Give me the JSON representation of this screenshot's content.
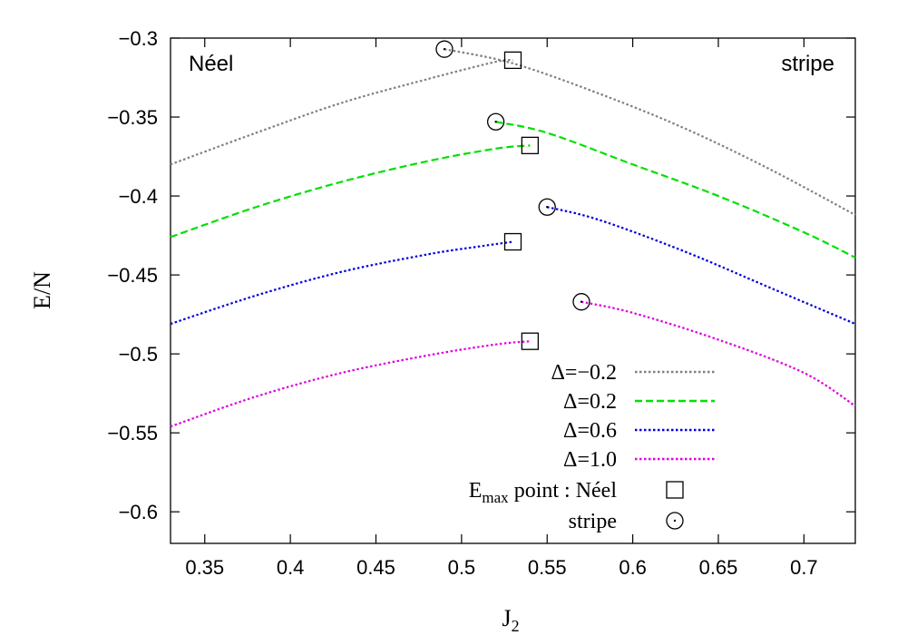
{
  "chart_data": {
    "type": "line",
    "title": "",
    "xlabel": "J",
    "xlabel_sub": "2",
    "ylabel": "E/N",
    "xlim": [
      0.33,
      0.73
    ],
    "ylim": [
      -0.62,
      -0.3
    ],
    "x_ticks": [
      0.35,
      0.4,
      0.45,
      0.5,
      0.55,
      0.6,
      0.65,
      0.7
    ],
    "x_tick_labels": [
      "0.35",
      "0.4",
      "0.45",
      "0.5",
      "0.55",
      "0.6",
      "0.65",
      "0.7"
    ],
    "y_ticks": [
      -0.3,
      -0.35,
      -0.4,
      -0.45,
      -0.5,
      -0.55,
      -0.6
    ],
    "y_tick_labels": [
      "−0.3",
      "−0.35",
      "−0.4",
      "−0.45",
      "−0.5",
      "−0.55",
      "−0.6"
    ],
    "grid": false,
    "legend_position": "bottom-right",
    "region_labels": {
      "left": "Néel",
      "right": "stripe"
    },
    "series": [
      {
        "name": "Δ=−0.2",
        "color": "#808080",
        "dash": "dotted",
        "neel_branch": [
          [
            0.33,
            -0.38
          ],
          [
            0.38,
            -0.36
          ],
          [
            0.43,
            -0.341
          ],
          [
            0.48,
            -0.326
          ],
          [
            0.52,
            -0.315
          ],
          [
            0.53,
            -0.314
          ]
        ],
        "stripe_branch": [
          [
            0.49,
            -0.307
          ],
          [
            0.53,
            -0.316
          ],
          [
            0.58,
            -0.335
          ],
          [
            0.63,
            -0.357
          ],
          [
            0.68,
            -0.383
          ],
          [
            0.73,
            -0.412
          ]
        ],
        "neel_max": [
          0.53,
          -0.314
        ],
        "stripe_point": [
          0.49,
          -0.307
        ]
      },
      {
        "name": "Δ=0.2",
        "color": "#00e000",
        "dash": "dashed",
        "neel_branch": [
          [
            0.33,
            -0.426
          ],
          [
            0.38,
            -0.407
          ],
          [
            0.43,
            -0.391
          ],
          [
            0.48,
            -0.378
          ],
          [
            0.52,
            -0.37
          ],
          [
            0.54,
            -0.368
          ]
        ],
        "stripe_branch": [
          [
            0.52,
            -0.353
          ],
          [
            0.55,
            -0.36
          ],
          [
            0.6,
            -0.38
          ],
          [
            0.65,
            -0.4
          ],
          [
            0.7,
            -0.423
          ],
          [
            0.73,
            -0.439
          ]
        ],
        "neel_max": [
          0.54,
          -0.368
        ],
        "stripe_point": [
          0.52,
          -0.353
        ]
      },
      {
        "name": "Δ=0.6",
        "color": "#0000dd",
        "dash": "dotted",
        "neel_branch": [
          [
            0.33,
            -0.481
          ],
          [
            0.38,
            -0.463
          ],
          [
            0.43,
            -0.448
          ],
          [
            0.48,
            -0.437
          ],
          [
            0.51,
            -0.432
          ],
          [
            0.53,
            -0.429
          ]
        ],
        "stripe_branch": [
          [
            0.55,
            -0.407
          ],
          [
            0.58,
            -0.415
          ],
          [
            0.63,
            -0.435
          ],
          [
            0.68,
            -0.458
          ],
          [
            0.73,
            -0.481
          ]
        ],
        "neel_max": [
          0.53,
          -0.429
        ],
        "stripe_point": [
          0.55,
          -0.407
        ]
      },
      {
        "name": "Δ=1.0",
        "color": "#e000e0",
        "dash": "dotted",
        "neel_branch": [
          [
            0.33,
            -0.546
          ],
          [
            0.38,
            -0.527
          ],
          [
            0.43,
            -0.512
          ],
          [
            0.48,
            -0.501
          ],
          [
            0.52,
            -0.494
          ],
          [
            0.54,
            -0.492
          ]
        ],
        "stripe_branch": [
          [
            0.57,
            -0.467
          ],
          [
            0.6,
            -0.474
          ],
          [
            0.65,
            -0.491
          ],
          [
            0.7,
            -0.512
          ],
          [
            0.73,
            -0.533
          ]
        ],
        "neel_max": [
          0.54,
          -0.492
        ],
        "stripe_point": [
          0.57,
          -0.467
        ]
      }
    ],
    "marker_legend": {
      "neel_label": "E",
      "neel_label_sub": "max",
      "neel_label_rest": " point : Néel",
      "stripe_label": "stripe"
    }
  }
}
